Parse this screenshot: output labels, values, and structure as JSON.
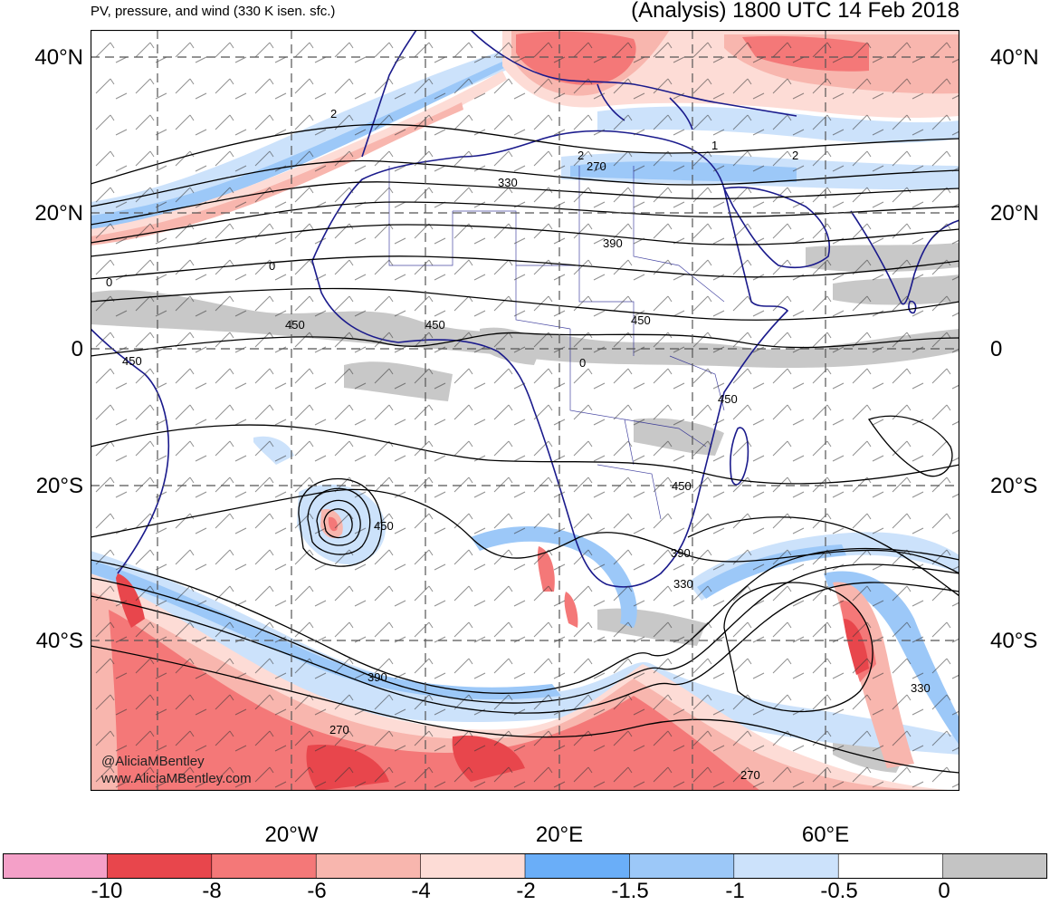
{
  "header": {
    "left_title": "PV, pressure, and wind (330 K isen. sfc.)",
    "right_title": "(Analysis) 1800 UTC 14 Feb 2018"
  },
  "map": {
    "lat_labels": [
      "40°N",
      "20°N",
      "0",
      "20°S",
      "40°S"
    ],
    "lon_labels": [
      "20°W",
      "20°E",
      "60°E"
    ],
    "contour_labels": [
      "2",
      "2",
      "270",
      "330",
      "1",
      "2",
      "390",
      "0",
      "0",
      "450",
      "450",
      "450",
      "450",
      "0",
      "450",
      "450",
      "450",
      "390",
      "330",
      "390",
      "270",
      "330",
      "270"
    ],
    "credits": [
      "@AliciaMBentley",
      "www.AliciaMBentley.com"
    ]
  },
  "colorbar": {
    "labels": [
      "-10",
      "-8",
      "-6",
      "-4",
      "-2",
      "-1.5",
      "-1",
      "-0.5",
      "0"
    ],
    "colors": [
      "#f4a0c8",
      "#e8464c",
      "#f47878",
      "#f8b6ae",
      "#fddcd6",
      "#6aaef8",
      "#9cc8f8",
      "#cce2fb",
      "#ffffff",
      "#c4c4c4"
    ]
  }
}
